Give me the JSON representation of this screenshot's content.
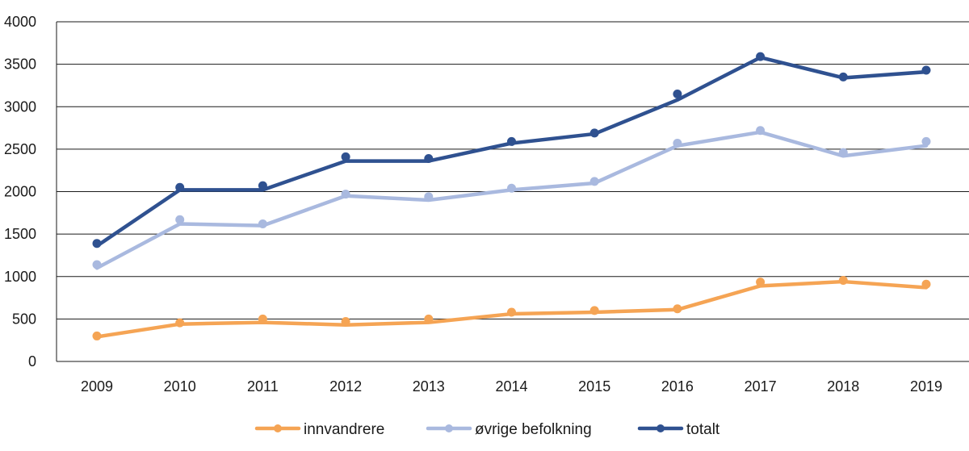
{
  "chart_data": {
    "type": "line",
    "title": "",
    "xlabel": "",
    "ylabel": "",
    "x": [
      "2009",
      "2010",
      "2011",
      "2012",
      "2013",
      "2014",
      "2015",
      "2016",
      "2017",
      "2018",
      "2019"
    ],
    "ylim": [
      0,
      4000
    ],
    "yticks": [
      "0",
      "500",
      "1000",
      "1500",
      "2000",
      "2500",
      "3000",
      "3500",
      "4000"
    ],
    "grid": true,
    "legend_position": "bottom",
    "series": [
      {
        "name": "innvandrere",
        "color": "#F5A454",
        "values": [
          290,
          440,
          460,
          430,
          460,
          560,
          580,
          610,
          890,
          940,
          870
        ],
        "markers": [
          300,
          455,
          500,
          470,
          500,
          580,
          600,
          620,
          935,
          955,
          910
        ]
      },
      {
        "name": "øvrige befolkning",
        "color": "#A9B9DF",
        "values": [
          1100,
          1620,
          1600,
          1950,
          1900,
          2020,
          2100,
          2540,
          2700,
          2420,
          2540
        ],
        "markers": [
          1140,
          1670,
          1620,
          1970,
          1940,
          2040,
          2120,
          2570,
          2720,
          2460,
          2590
        ]
      },
      {
        "name": "totalt",
        "color": "#2F5190",
        "values": [
          1360,
          2020,
          2020,
          2360,
          2360,
          2570,
          2680,
          3080,
          3580,
          3340,
          3410
        ],
        "markers": [
          1390,
          2050,
          2070,
          2410,
          2390,
          2590,
          2690,
          3150,
          3590,
          3350,
          3430
        ]
      }
    ]
  }
}
